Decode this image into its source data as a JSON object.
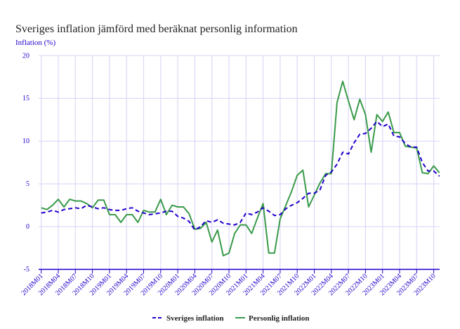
{
  "chart_data": {
    "type": "line",
    "title": "Sveriges inflation jämförd med beräknat personlig information",
    "ylabel": "Inflation (%)",
    "xlabel": "",
    "ylim": [
      -5,
      20
    ],
    "yticks": [
      -5,
      0,
      5,
      10,
      15,
      20
    ],
    "grid": true,
    "legend": "bottom",
    "x_start": "2018M01",
    "xtick_labels": [
      "2018M01",
      "2018M04",
      "2018M07",
      "2018M10",
      "2019M01",
      "2019M04",
      "2019M07",
      "2019M10",
      "2020M01",
      "2020M04",
      "2020M07",
      "2020M10",
      "2021M01",
      "2021M04",
      "2021M07",
      "2021M10",
      "2022M01",
      "2022M04",
      "2022M07",
      "2022M10",
      "2023M01",
      "2023M04",
      "2023M07",
      "2023M10"
    ],
    "series": [
      {
        "name": "Sveriges inflation",
        "color": "#2200cc",
        "style": "dashed",
        "values": [
          1.6,
          1.7,
          1.9,
          1.7,
          2.0,
          2.1,
          2.2,
          2.1,
          2.5,
          2.3,
          2.1,
          2.2,
          2.0,
          1.9,
          1.9,
          2.1,
          2.2,
          1.8,
          1.6,
          1.4,
          1.5,
          1.6,
          1.8,
          1.8,
          1.2,
          1.0,
          0.6,
          -0.4,
          0.0,
          0.7,
          0.5,
          0.8,
          0.4,
          0.3,
          0.2,
          0.5,
          1.6,
          1.4,
          1.7,
          2.2,
          1.8,
          1.3,
          1.4,
          2.1,
          2.5,
          2.8,
          3.3,
          3.9,
          3.9,
          4.3,
          6.0,
          6.4,
          7.3,
          8.7,
          8.5,
          9.8,
          10.8,
          10.9,
          11.5,
          12.3,
          11.7,
          12.0,
          10.6,
          10.5,
          9.7,
          9.3,
          9.3,
          7.5,
          6.5,
          6.5,
          5.9
        ]
      },
      {
        "name": "Personlig inflation",
        "color": "#3a9a4a",
        "style": "solid",
        "values": [
          2.2,
          2.0,
          2.5,
          3.2,
          2.3,
          3.2,
          3.0,
          3.0,
          2.7,
          2.2,
          3.1,
          3.1,
          1.4,
          1.4,
          0.5,
          1.4,
          1.4,
          0.5,
          1.9,
          1.7,
          1.7,
          3.2,
          1.4,
          2.5,
          2.3,
          2.3,
          1.5,
          -0.3,
          -0.2,
          0.5,
          -1.8,
          -0.4,
          -3.4,
          -3.1,
          -0.8,
          0.2,
          0.2,
          -0.8,
          1.0,
          2.7,
          -3.1,
          -3.1,
          0.9,
          2.5,
          4.1,
          6.0,
          6.6,
          2.3,
          3.7,
          5.1,
          6.2,
          6.2,
          14.5,
          17.0,
          14.7,
          12.5,
          14.9,
          13.1,
          8.7,
          13.1,
          12.3,
          13.4,
          11.0,
          11.0,
          9.4,
          9.3,
          9.2,
          6.3,
          6.2,
          7.1,
          6.3
        ]
      }
    ]
  }
}
